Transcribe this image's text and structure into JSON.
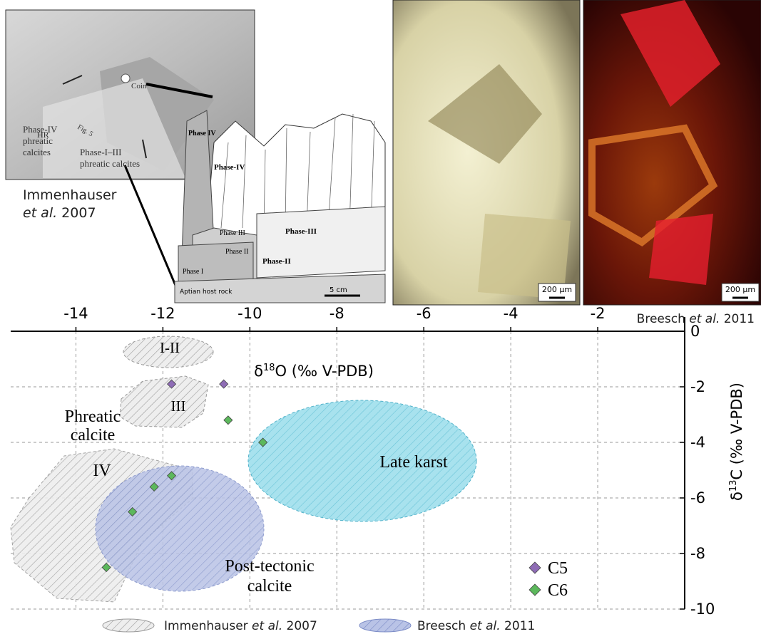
{
  "figure": {
    "photo_labels": [
      "Phase-IV",
      "phreatic",
      "calcites",
      "Coin",
      "HR",
      "Fig. 5",
      "Phase-I–III",
      "phreatic calcites"
    ],
    "sketch_labels": [
      "Phase IV",
      "Phase-IV",
      "Phase III",
      "Phase II",
      "Phase I",
      "Phase-III",
      "Phase-II",
      "Aptian host rock",
      "5 cm"
    ],
    "citation_left": [
      "Immenhauser",
      "et al.",
      " 2007"
    ],
    "citation_right": [
      "Breesch ",
      "et al.",
      " 2011"
    ],
    "scale_bars": [
      "200 μm",
      "200 μm"
    ]
  },
  "chart_data": {
    "type": "scatter",
    "x_label": [
      "δ",
      "18",
      "O (‰ V-PDB)"
    ],
    "y_label": [
      "δ",
      "13",
      "C (‰ V-PDB)"
    ],
    "xlim": [
      -15.5,
      0
    ],
    "ylim": [
      -10,
      0
    ],
    "xticks": [
      -14,
      -12,
      -10,
      -8,
      -6,
      -4,
      -2
    ],
    "yticks": [
      0,
      -2,
      -4,
      -6,
      -8,
      -10
    ],
    "grid": true,
    "series": [
      {
        "name": "C5",
        "color": "#8e6cb5",
        "x": [
          -11.8,
          -10.6
        ],
        "values": [
          -1.9,
          -1.9
        ]
      },
      {
        "name": "C6",
        "color": "#5cb85c",
        "x": [
          -10.5,
          -9.7,
          -11.8,
          -12.2,
          -12.7,
          -13.3
        ],
        "values": [
          -3.2,
          -4.0,
          -5.2,
          -5.6,
          -6.5,
          -8.5
        ]
      }
    ],
    "annotations": [
      "I-II",
      "III",
      "Phreatic",
      "calcite",
      "IV",
      "Late karst",
      "Post-tectonic",
      "calcite"
    ],
    "region_legend": [
      [
        "Immenhauser ",
        "et al.",
        " 2007"
      ],
      [
        "Breesch ",
        "et al.",
        " 2011"
      ]
    ]
  }
}
